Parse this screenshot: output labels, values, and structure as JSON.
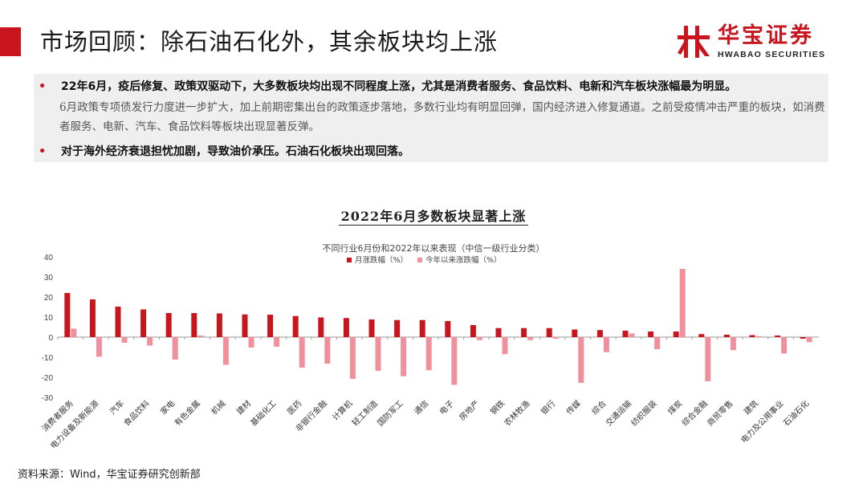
{
  "header": {
    "title": "市场回顾：除石油石化外，其余板块均上涨",
    "brand_cn": "华宝证券",
    "brand_en": "HWABAO SECURITIES"
  },
  "summary": {
    "bullet1": "22年6月，疫后修复、政策双驱动下，大多数板块均出现不同程度上涨，尤其是消费者服务、食品饮料、电新和汽车板块涨幅最为明显。",
    "detail": "6月政策专项债发行力度进一步扩大，加上前期密集出台的政策逐步落地，多数行业均有明显回弹，国内经济进入修复通道。之前受疫情冲击严重的板块，如消费者服务、电新、汽车、食品饮料等板块出现显著反弹。",
    "bullet2": "对于海外经济衰退担忧加剧，导致油价承压。石油石化板块出现回落。",
    "bullet_mark": "•"
  },
  "chart_data": {
    "type": "bar",
    "title": "2022年6月多数板块显著上涨",
    "subtitle": "不同行业6月份和2022年以来表现（中信一级行业分类）",
    "categories": [
      "消费者服务",
      "电力设备及新能源",
      "汽车",
      "食品饮料",
      "家电",
      "有色金属",
      "机械",
      "建材",
      "基础化工",
      "医药",
      "非银行金融",
      "计算机",
      "轻工制造",
      "国防军工",
      "通信",
      "电子",
      "房地产",
      "钢铁",
      "农林牧渔",
      "银行",
      "传媒",
      "综合",
      "交通运输",
      "纺织服装",
      "煤炭",
      "综合金融",
      "商贸零售",
      "建筑",
      "电力及公用事业",
      "石油石化"
    ],
    "series": [
      {
        "name": "月涨跌幅（%）",
        "color": "#c9151e",
        "values": [
          22.0,
          18.8,
          15.2,
          13.8,
          12.0,
          12.0,
          11.8,
          11.3,
          11.2,
          10.5,
          9.8,
          9.5,
          8.8,
          8.5,
          8.5,
          8.0,
          6.0,
          4.5,
          4.5,
          4.5,
          3.8,
          3.5,
          3.2,
          2.8,
          2.8,
          1.5,
          1.2,
          1.0,
          0.8,
          -0.8
        ]
      },
      {
        "name": "今年以来涨跌幅（%）",
        "color": "#f0909c",
        "values": [
          4.2,
          -9.8,
          -2.8,
          -4.2,
          -11.2,
          0.8,
          -13.8,
          -5.2,
          -4.8,
          -15.2,
          -13.2,
          -20.8,
          -16.8,
          -19.5,
          -16.5,
          -23.8,
          -1.5,
          -8.5,
          -1.5,
          -0.8,
          -22.8,
          -7.5,
          1.8,
          -6.0,
          34.0,
          -22.0,
          -6.5,
          0.5,
          -8.2,
          -2.5
        ]
      }
    ],
    "ylim": [
      -30,
      40
    ],
    "yticks": [
      40,
      30,
      20,
      10,
      0,
      -10,
      -20,
      -30
    ],
    "xlabel": "",
    "ylabel": "",
    "grid": false,
    "legend": "top-center"
  },
  "source": "资料来源：Wind，华宝证券研究创新部",
  "colors": {
    "accent": "#c9151e",
    "secondary": "#f0909c",
    "panel": "#efefef"
  }
}
